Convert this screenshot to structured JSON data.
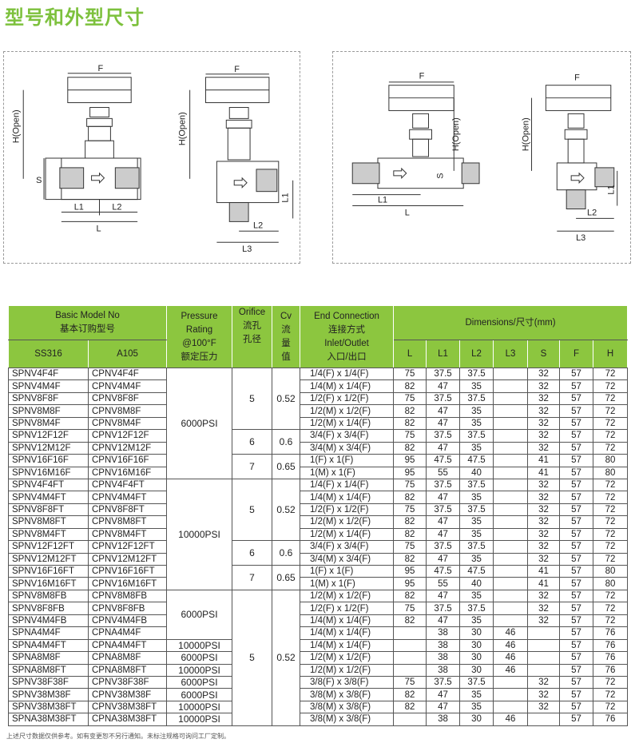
{
  "title": "型号和外型尺寸",
  "diagram_labels": {
    "F": "F",
    "H": "H(Open)",
    "S": "S",
    "L": "L",
    "L1": "L1",
    "L2": "L2",
    "L3": "L3"
  },
  "table": {
    "header": {
      "basic_model": "Basic Model No",
      "basic_model_cn": "基本订购型号",
      "ss316": "SS316",
      "a105": "A105",
      "pressure": [
        "Pressure",
        "Rating",
        "@100°F",
        "额定压力"
      ],
      "orifice": [
        "Orifice",
        "流孔",
        "孔径"
      ],
      "cv": [
        "Cv",
        "流",
        "量",
        "值"
      ],
      "end": [
        "End Connection",
        "连接方式",
        "Inlet/Outlet",
        "入口/出口"
      ],
      "dimensions": "Dimensions/尺寸(mm)",
      "dim_cols": [
        "L",
        "L1",
        "L2",
        "L3",
        "S",
        "F",
        "H"
      ]
    },
    "rows": [
      [
        "SPNV4F4F",
        "CPNV4F4F",
        "1/4(F) x 1/4(F)",
        "75",
        "37.5",
        "37.5",
        "",
        "32",
        "57",
        "72"
      ],
      [
        "SPNV4M4F",
        "CPNV4M4F",
        "1/4(M) x 1/4(F)",
        "82",
        "47",
        "35",
        "",
        "32",
        "57",
        "72"
      ],
      [
        "SPNV8F8F",
        "CPNV8F8F",
        "1/2(F) x 1/2(F)",
        "75",
        "37.5",
        "37.5",
        "",
        "32",
        "57",
        "72"
      ],
      [
        "SPNV8M8F",
        "CPNV8M8F",
        "1/2(M) x 1/2(F)",
        "82",
        "47",
        "35",
        "",
        "32",
        "57",
        "72"
      ],
      [
        "SPNV8M4F",
        "CPNV8M4F",
        "1/2(M) x 1/4(F)",
        "82",
        "47",
        "35",
        "",
        "32",
        "57",
        "72"
      ],
      [
        "SPNV12F12F",
        "CPNV12F12F",
        "3/4(F) x 3/4(F)",
        "75",
        "37.5",
        "37.5",
        "",
        "32",
        "57",
        "72"
      ],
      [
        "SPNV12M12F",
        "CPNV12M12F",
        "3/4(M) x 3/4(F)",
        "82",
        "47",
        "35",
        "",
        "32",
        "57",
        "72"
      ],
      [
        "SPNV16F16F",
        "CPNV16F16F",
        "1(F) x 1(F)",
        "95",
        "47.5",
        "47.5",
        "",
        "41",
        "57",
        "80"
      ],
      [
        "SPNV16M16F",
        "CPNV16M16F",
        "1(M) x 1(F)",
        "95",
        "55",
        "40",
        "",
        "41",
        "57",
        "80"
      ],
      [
        "SPNV4F4FT",
        "CPNV4F4FT",
        "1/4(F) x 1/4(F)",
        "75",
        "37.5",
        "37.5",
        "",
        "32",
        "57",
        "72"
      ],
      [
        "SPNV4M4FT",
        "CPNV4M4FT",
        "1/4(M) x 1/4(F)",
        "82",
        "47",
        "35",
        "",
        "32",
        "57",
        "72"
      ],
      [
        "SPNV8F8FT",
        "CPNV8F8FT",
        "1/2(F) x 1/2(F)",
        "75",
        "37.5",
        "37.5",
        "",
        "32",
        "57",
        "72"
      ],
      [
        "SPNV8M8FT",
        "CPNV8M8FT",
        "1/2(M) x 1/2(F)",
        "82",
        "47",
        "35",
        "",
        "32",
        "57",
        "72"
      ],
      [
        "SPNV8M4FT",
        "CPNV8M4FT",
        "1/2(M) x 1/4(F)",
        "82",
        "47",
        "35",
        "",
        "32",
        "57",
        "72"
      ],
      [
        "SPNV12F12FT",
        "CPNV12F12FT",
        "3/4(F) x 3/4(F)",
        "75",
        "37.5",
        "37.5",
        "",
        "32",
        "57",
        "72"
      ],
      [
        "SPNV12M12FT",
        "CPNV12M12FT",
        "3/4(M) x 3/4(F)",
        "82",
        "47",
        "35",
        "",
        "32",
        "57",
        "72"
      ],
      [
        "SPNV16F16FT",
        "CPNV16F16FT",
        "1(F) x 1(F)",
        "95",
        "47.5",
        "47.5",
        "",
        "41",
        "57",
        "80"
      ],
      [
        "SPNV16M16FT",
        "CPNV16M16FT",
        "1(M) x 1(F)",
        "95",
        "55",
        "40",
        "",
        "41",
        "57",
        "80"
      ],
      [
        "SPNV8M8FB",
        "CPNV8M8FB",
        "1/2(M) x 1/2(F)",
        "82",
        "47",
        "35",
        "",
        "32",
        "57",
        "72"
      ],
      [
        "SPNV8F8FB",
        "CPNV8F8FB",
        "1/2(F) x 1/2(F)",
        "75",
        "37.5",
        "37.5",
        "",
        "32",
        "57",
        "72"
      ],
      [
        "SPNV4M4FB",
        "CPNV4M4FB",
        "1/4(M) x 1/4(F)",
        "82",
        "47",
        "35",
        "",
        "32",
        "57",
        "72"
      ],
      [
        "SPNA4M4F",
        "CPNA4M4F",
        "1/4(M) x 1/4(F)",
        "",
        "38",
        "30",
        "46",
        "",
        "57",
        "76"
      ],
      [
        "SPNA4M4FT",
        "CPNA4M4FT",
        "1/4(M) x 1/4(F)",
        "",
        "38",
        "30",
        "46",
        "",
        "57",
        "76"
      ],
      [
        "SPNA8M8F",
        "CPNA8M8F",
        "1/2(M) x 1/2(F)",
        "",
        "38",
        "30",
        "46",
        "",
        "57",
        "76"
      ],
      [
        "SPNA8M8FT",
        "CPNA8M8FT",
        "1/2(M) x 1/2(F)",
        "",
        "38",
        "30",
        "46",
        "",
        "57",
        "76"
      ],
      [
        "SPNV38F38F",
        "CPNV38F38F",
        "3/8(F) x 3/8(F)",
        "75",
        "37.5",
        "37.5",
        "",
        "32",
        "57",
        "72"
      ],
      [
        "SPNV38M38F",
        "CPNV38M38F",
        "3/8(M) x 3/8(F)",
        "82",
        "47",
        "35",
        "",
        "32",
        "57",
        "72"
      ],
      [
        "SPNV38M38FT",
        "CPNV38M38FT",
        "3/8(M) x 3/8(F)",
        "82",
        "47",
        "35",
        "",
        "32",
        "57",
        "72"
      ],
      [
        "SPNA38M38FT",
        "CPNA38M38FT",
        "3/8(M) x 3/8(F)",
        "",
        "38",
        "30",
        "46",
        "",
        "57",
        "76"
      ]
    ],
    "pressure_groups": [
      {
        "value": "6000PSI",
        "rows": 9
      },
      {
        "value": "10000PSI",
        "rows": 9
      },
      {
        "value": "6000PSI",
        "rows": 4
      },
      {
        "value": "10000PSI",
        "rows": 1
      },
      {
        "value": "6000PSI",
        "rows": 1
      },
      {
        "value": "10000PSI",
        "rows": 1
      },
      {
        "value": "6000PSI",
        "rows": 1
      },
      {
        "value": "6000PSI",
        "rows": 1
      },
      {
        "value": "10000PSI",
        "rows": 1
      },
      {
        "value": "10000PSI",
        "rows": 1
      }
    ],
    "orifice_groups": [
      {
        "orifice": "5",
        "cv": "0.52",
        "rows": 5
      },
      {
        "orifice": "6",
        "cv": "0.6",
        "rows": 2
      },
      {
        "orifice": "7",
        "cv": "0.65",
        "rows": 2
      },
      {
        "orifice": "5",
        "cv": "0.52",
        "rows": 5
      },
      {
        "orifice": "6",
        "cv": "0.6",
        "rows": 2
      },
      {
        "orifice": "7",
        "cv": "0.65",
        "rows": 2
      },
      {
        "orifice": "5",
        "cv": "0.52",
        "rows": 11
      }
    ]
  },
  "footnote": "上述尺寸数据仅供参考。如有变更恕不另行通知。未标注规格可询问工厂定制。",
  "colors": {
    "accent": "#8cc63f",
    "title": "#7dc13d"
  }
}
